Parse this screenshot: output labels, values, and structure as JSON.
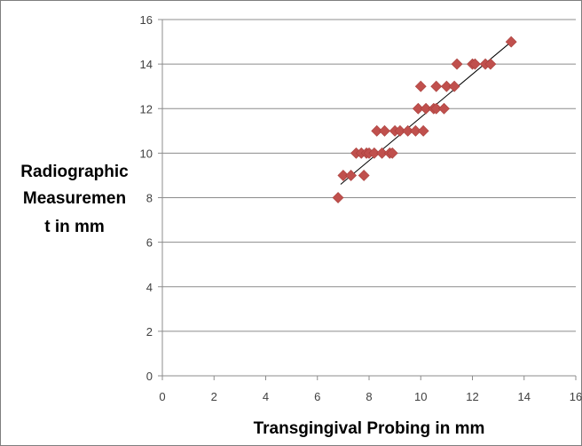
{
  "chart_data": {
    "type": "scatter",
    "title": "",
    "xlabel": "Transgingival Probing in mm",
    "ylabel_lines": [
      "Radiographic",
      "Measuremen",
      "t in mm"
    ],
    "xlim": [
      0,
      16
    ],
    "ylim": [
      0,
      16
    ],
    "x_ticks": [
      "0",
      "2",
      "4",
      "6",
      "8",
      "10",
      "12",
      "14",
      "16"
    ],
    "y_ticks": [
      "0",
      "2",
      "4",
      "6",
      "8",
      "10",
      "12",
      "14",
      "16"
    ],
    "grid": "horizontal",
    "legend": "none",
    "marker": "diamond",
    "marker_color": "#C0504D",
    "trendline": {
      "x": [
        6.9,
        13.5
      ],
      "y": [
        8.6,
        15.0
      ],
      "color": "#000000"
    },
    "points": [
      {
        "x": 6.8,
        "y": 8
      },
      {
        "x": 7.0,
        "y": 9
      },
      {
        "x": 7.3,
        "y": 9
      },
      {
        "x": 7.8,
        "y": 9
      },
      {
        "x": 7.5,
        "y": 10
      },
      {
        "x": 7.7,
        "y": 10
      },
      {
        "x": 7.9,
        "y": 10
      },
      {
        "x": 8.0,
        "y": 10
      },
      {
        "x": 8.2,
        "y": 10
      },
      {
        "x": 8.5,
        "y": 10
      },
      {
        "x": 8.8,
        "y": 10
      },
      {
        "x": 8.9,
        "y": 10
      },
      {
        "x": 8.3,
        "y": 11
      },
      {
        "x": 8.6,
        "y": 11
      },
      {
        "x": 9.0,
        "y": 11
      },
      {
        "x": 9.2,
        "y": 11
      },
      {
        "x": 9.5,
        "y": 11
      },
      {
        "x": 9.8,
        "y": 11
      },
      {
        "x": 10.1,
        "y": 11
      },
      {
        "x": 9.9,
        "y": 12
      },
      {
        "x": 10.2,
        "y": 12
      },
      {
        "x": 10.5,
        "y": 12
      },
      {
        "x": 10.6,
        "y": 12
      },
      {
        "x": 10.9,
        "y": 12
      },
      {
        "x": 10.0,
        "y": 13
      },
      {
        "x": 10.6,
        "y": 13
      },
      {
        "x": 11.0,
        "y": 13
      },
      {
        "x": 11.3,
        "y": 13
      },
      {
        "x": 11.4,
        "y": 14
      },
      {
        "x": 12.0,
        "y": 14
      },
      {
        "x": 12.1,
        "y": 14
      },
      {
        "x": 12.5,
        "y": 14
      },
      {
        "x": 12.7,
        "y": 14
      },
      {
        "x": 13.5,
        "y": 15
      }
    ]
  },
  "colors": {
    "gridline": "#8c8c8c",
    "axis": "#8c8c8c"
  }
}
